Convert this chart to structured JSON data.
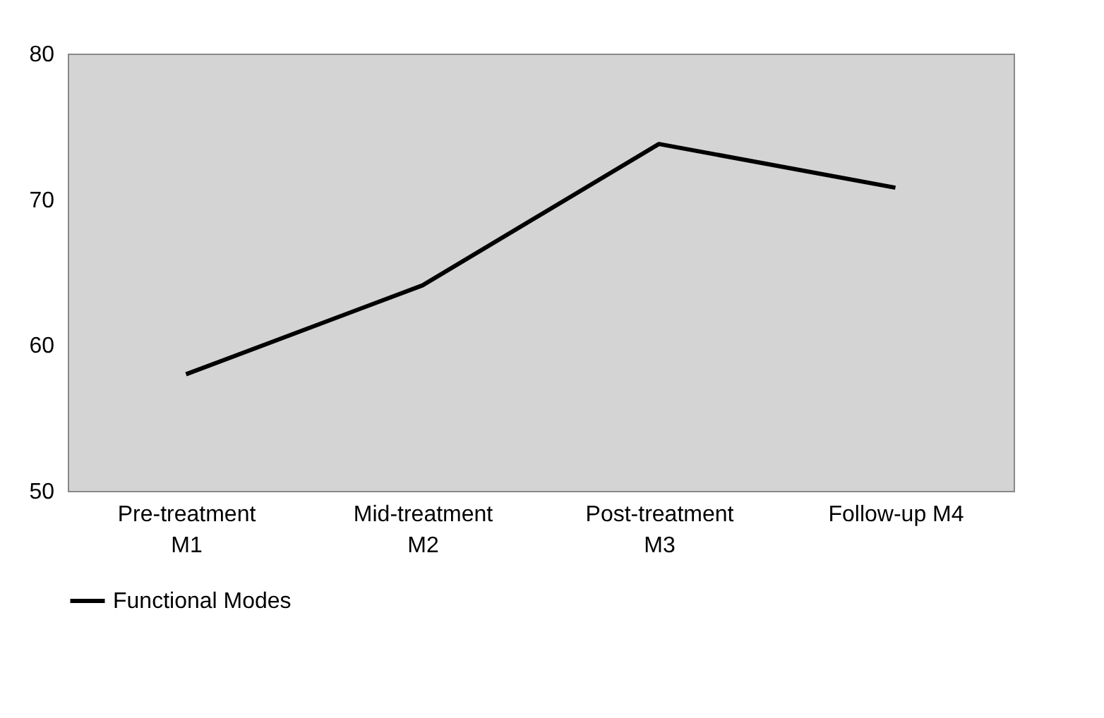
{
  "chart_data": {
    "type": "line",
    "categories": [
      "Pre-treatment M1",
      "Mid-treatment M2",
      "Post-treatment M3",
      "Follow-up M4"
    ],
    "series": [
      {
        "name": "Functional Modes",
        "color": "#000000",
        "values": [
          58.0,
          64.1,
          73.8,
          70.8
        ]
      }
    ],
    "ylim": [
      50,
      80
    ],
    "yticks": [
      50,
      60,
      70,
      80
    ],
    "grid": false,
    "legend": "bottom",
    "marker": "none",
    "line_style": "solid"
  }
}
